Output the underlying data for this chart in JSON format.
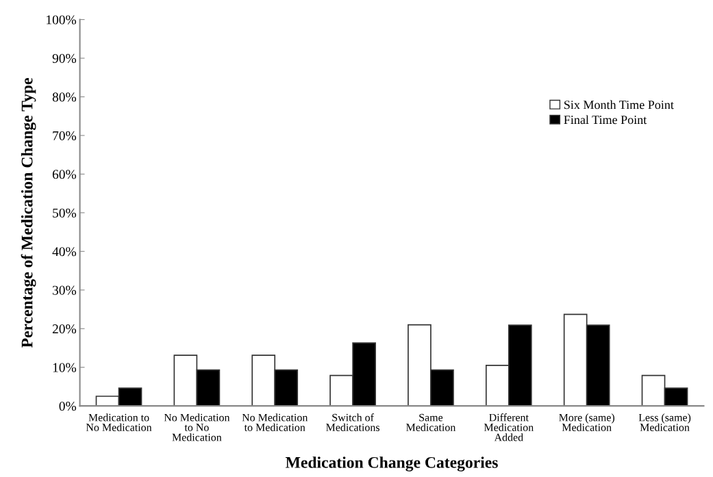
{
  "chart_data": {
    "type": "bar",
    "xlabel": "Medication Change Categories",
    "ylabel": "Percentage of Medication Change Type",
    "categories": [
      "Medication to\nNo Medication",
      "No Medication\nto No\nMedication",
      "No Medication\nto Medication",
      "Switch of\nMedications",
      "Same\nMedication",
      "Different\nMedication\nAdded",
      "More (same)\nMedication",
      "Less (same)\nMedication"
    ],
    "series": [
      {
        "name": "Six Month Time Point",
        "color": "#ffffff",
        "values": [
          2.5,
          13.1,
          13.1,
          7.9,
          21.0,
          10.5,
          23.7,
          7.9
        ]
      },
      {
        "name": "Final Time Point",
        "color": "#000000",
        "values": [
          4.6,
          9.3,
          9.3,
          16.3,
          9.3,
          20.9,
          20.9,
          4.6
        ]
      }
    ],
    "ylim": [
      0,
      100
    ],
    "yticks": [
      {
        "value": 0,
        "label": "0%"
      },
      {
        "value": 10,
        "label": "10%"
      },
      {
        "value": 20,
        "label": "20%"
      },
      {
        "value": 30,
        "label": "30%"
      },
      {
        "value": 40,
        "label": "40%"
      },
      {
        "value": 50,
        "label": "50%"
      },
      {
        "value": 60,
        "label": "60%"
      },
      {
        "value": 70,
        "label": "70%"
      },
      {
        "value": 80,
        "label": "80%"
      },
      {
        "value": 90,
        "label": "90%"
      },
      {
        "value": 100,
        "label": "100%"
      }
    ],
    "grid": false,
    "legend": "top right"
  }
}
